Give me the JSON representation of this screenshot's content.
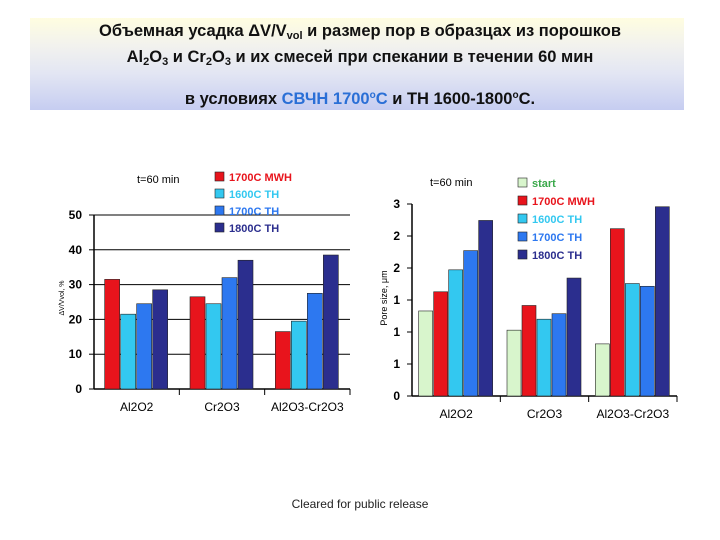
{
  "title": {
    "line1_a": "Объемная усадка ΔV/V",
    "line1_sub": "vol",
    "line1_b": " и размер пор в образцах из порошков",
    "line2_a": "Al",
    "line2_s1": "2",
    "line2_b": "O",
    "line2_s2": "3",
    "line2_c": " и Cr",
    "line2_s3": "2",
    "line2_d": "O",
    "line2_s4": "3",
    "line2_e": " и их смесей при спекании в течении 60 мин",
    "line3_a": "в условиях ",
    "line3_hl1": "СВЧН 1700",
    "line3_sup1": "о",
    "line3_hl2": "С",
    "line3_b": " и ТН 1600-1800",
    "line3_sup2": "о",
    "line3_c": "С."
  },
  "footer": "Cleared for public release",
  "chart_data": [
    {
      "type": "bar",
      "annotation": "t=60 min",
      "ylabel": "ΔV/Vvol, %",
      "ylim": [
        0,
        50
      ],
      "yticks": [
        "0",
        "10",
        "20",
        "30",
        "40",
        "50"
      ],
      "categories": [
        "Al2O2",
        "Cr2O3",
        "Al2O3-Cr2O3"
      ],
      "series": [
        {
          "name": "1700C MWH",
          "color": "#e8141c",
          "values": [
            31.5,
            26.5,
            16.5
          ]
        },
        {
          "name": "1600C TH",
          "color": "#33c8f0",
          "values": [
            21.5,
            24.5,
            19.5
          ]
        },
        {
          "name": "1700C TH",
          "color": "#2d78f0",
          "values": [
            24.5,
            32.0,
            27.5
          ]
        },
        {
          "name": "1800C TH",
          "color": "#2b2e8e",
          "values": [
            28.5,
            37.0,
            38.5
          ]
        }
      ],
      "legend": "top"
    },
    {
      "type": "bar",
      "annotation": "t=60 min",
      "ylabel": "Pore size, μm",
      "ylim": [
        0,
        3.5
      ],
      "yticks": [
        "0",
        "1",
        "1",
        "1",
        "2",
        "2",
        "3"
      ],
      "categories": [
        "Al2O2",
        "Cr2O3",
        "Al2O3-Cr2O3"
      ],
      "series": [
        {
          "name": "start",
          "color": "#d8f5cc",
          "values": [
            1.55,
            1.2,
            0.95
          ]
        },
        {
          "name": "1700C MWH",
          "color": "#e8141c",
          "values": [
            1.9,
            1.65,
            3.05
          ]
        },
        {
          "name": "1600C TH",
          "color": "#33c8f0",
          "values": [
            2.3,
            1.4,
            2.05
          ]
        },
        {
          "name": "1700C TH",
          "color": "#2d78f0",
          "values": [
            2.65,
            1.5,
            2.0
          ]
        },
        {
          "name": "1800C TH",
          "color": "#2b2e8e",
          "values": [
            3.2,
            2.15,
            3.45
          ]
        }
      ],
      "legend": "right"
    }
  ]
}
